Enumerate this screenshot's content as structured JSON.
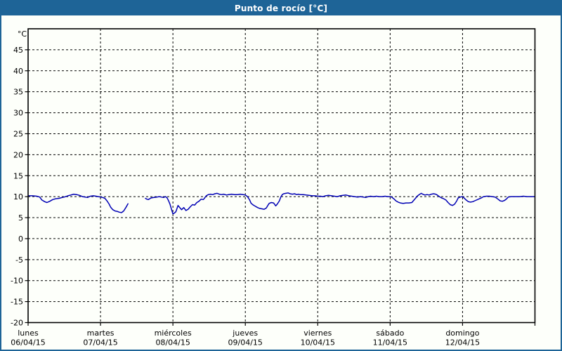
{
  "window": {
    "title": "Punto de rocío [°C]"
  },
  "colors": {
    "titlebar_bg": "#1e6497",
    "border": "#1e6497",
    "title_text": "#ffffff",
    "background": "#fdfffa",
    "line": "#0000b4",
    "grid": "#000000",
    "label_text": "#000000"
  },
  "chart_data": {
    "type": "line",
    "title": "Punto de rocío [°C]",
    "ylabel": "°C",
    "ylim": [
      -20,
      50
    ],
    "ytick_step": 5,
    "ytick_values": [
      45,
      40,
      35,
      30,
      25,
      20,
      15,
      10,
      5,
      0,
      -5,
      -10,
      -15,
      -20
    ],
    "grid": "dashed",
    "legend": "none",
    "x_days": [
      {
        "name": "lunes",
        "date": "06/04/15"
      },
      {
        "name": "martes",
        "date": "07/04/15"
      },
      {
        "name": "miércoles",
        "date": "08/04/15"
      },
      {
        "name": "jueves",
        "date": "09/04/15"
      },
      {
        "name": "viernes",
        "date": "10/04/15"
      },
      {
        "name": "sábado",
        "date": "11/04/15"
      },
      {
        "name": "domingo",
        "date": "12/04/15"
      }
    ],
    "x_unit": "days (0 = lunes 00:00)",
    "series": [
      {
        "name": "Punto de rocío",
        "color": "#0000b4",
        "segments": [
          [
            [
              0.0,
              10.2
            ],
            [
              0.06,
              10.2
            ],
            [
              0.12,
              10.1
            ],
            [
              0.16,
              9.9
            ],
            [
              0.19,
              9.2
            ],
            [
              0.23,
              8.8
            ],
            [
              0.26,
              8.6
            ],
            [
              0.3,
              8.9
            ],
            [
              0.34,
              9.3
            ],
            [
              0.38,
              9.5
            ],
            [
              0.43,
              9.6
            ],
            [
              0.47,
              9.8
            ],
            [
              0.5,
              9.9
            ],
            [
              0.55,
              10.2
            ],
            [
              0.59,
              10.4
            ],
            [
              0.63,
              10.6
            ],
            [
              0.67,
              10.5
            ],
            [
              0.71,
              10.3
            ],
            [
              0.75,
              10.0
            ],
            [
              0.79,
              9.9
            ],
            [
              0.82,
              9.8
            ],
            [
              0.86,
              10.1
            ],
            [
              0.9,
              10.2
            ],
            [
              0.94,
              10.1
            ],
            [
              0.97,
              10.0
            ],
            [
              1.0,
              9.9
            ],
            [
              1.03,
              9.8
            ],
            [
              1.06,
              9.6
            ],
            [
              1.09,
              9.0
            ],
            [
              1.12,
              8.2
            ],
            [
              1.14,
              7.5
            ],
            [
              1.17,
              6.9
            ],
            [
              1.2,
              6.6
            ],
            [
              1.23,
              6.5
            ],
            [
              1.26,
              6.3
            ],
            [
              1.29,
              6.2
            ],
            [
              1.32,
              6.6
            ],
            [
              1.35,
              7.4
            ],
            [
              1.38,
              8.3
            ]
          ],
          [
            [
              1.62,
              9.6
            ],
            [
              1.64,
              9.4
            ],
            [
              1.66,
              9.3
            ],
            [
              1.7,
              9.7
            ],
            [
              1.74,
              9.8
            ],
            [
              1.78,
              9.9
            ],
            [
              1.81,
              10.0
            ],
            [
              1.84,
              9.9
            ],
            [
              1.87,
              9.8
            ],
            [
              1.9,
              10.0
            ],
            [
              1.92,
              9.7
            ],
            [
              1.94,
              9.0
            ],
            [
              1.96,
              8.2
            ],
            [
              1.98,
              7.0
            ],
            [
              2.0,
              5.9
            ],
            [
              2.02,
              6.1
            ],
            [
              2.04,
              6.4
            ],
            [
              2.07,
              7.9
            ],
            [
              2.1,
              7.3
            ],
            [
              2.12,
              6.9
            ],
            [
              2.15,
              7.4
            ],
            [
              2.18,
              6.7
            ],
            [
              2.21,
              7.0
            ],
            [
              2.24,
              7.6
            ],
            [
              2.27,
              8.1
            ],
            [
              2.3,
              8.0
            ],
            [
              2.33,
              8.6
            ],
            [
              2.36,
              8.9
            ],
            [
              2.39,
              9.4
            ],
            [
              2.42,
              9.3
            ],
            [
              2.43,
              9.5
            ],
            [
              2.46,
              10.2
            ],
            [
              2.49,
              10.5
            ],
            [
              2.52,
              10.6
            ],
            [
              2.55,
              10.5
            ],
            [
              2.58,
              10.7
            ],
            [
              2.61,
              10.8
            ],
            [
              2.64,
              10.6
            ],
            [
              2.67,
              10.5
            ],
            [
              2.7,
              10.6
            ],
            [
              2.74,
              10.4
            ],
            [
              2.77,
              10.5
            ],
            [
              2.81,
              10.6
            ],
            [
              2.85,
              10.5
            ],
            [
              2.89,
              10.5
            ],
            [
              2.93,
              10.6
            ],
            [
              2.97,
              10.5
            ],
            [
              3.0,
              10.4
            ],
            [
              3.03,
              10.0
            ],
            [
              3.06,
              9.2
            ],
            [
              3.08,
              8.4
            ],
            [
              3.11,
              8.0
            ],
            [
              3.14,
              7.7
            ],
            [
              3.17,
              7.4
            ],
            [
              3.2,
              7.2
            ],
            [
              3.23,
              7.1
            ],
            [
              3.26,
              7.0
            ],
            [
              3.29,
              7.3
            ],
            [
              3.31,
              7.9
            ],
            [
              3.33,
              8.4
            ],
            [
              3.36,
              8.6
            ],
            [
              3.39,
              8.5
            ],
            [
              3.4,
              8.3
            ],
            [
              3.42,
              7.8
            ],
            [
              3.44,
              8.2
            ],
            [
              3.47,
              9.0
            ],
            [
              3.49,
              9.9
            ],
            [
              3.51,
              10.5
            ],
            [
              3.53,
              10.7
            ],
            [
              3.56,
              10.8
            ],
            [
              3.59,
              10.9
            ],
            [
              3.62,
              10.7
            ],
            [
              3.65,
              10.6
            ],
            [
              3.68,
              10.7
            ],
            [
              3.71,
              10.5
            ],
            [
              3.73,
              10.6
            ],
            [
              3.76,
              10.5
            ],
            [
              3.8,
              10.5
            ],
            [
              3.84,
              10.4
            ],
            [
              3.88,
              10.3
            ],
            [
              3.92,
              10.2
            ],
            [
              3.96,
              10.2
            ],
            [
              4.0,
              10.1
            ],
            [
              4.04,
              10.1
            ],
            [
              4.07,
              10.0
            ],
            [
              4.11,
              10.2
            ],
            [
              4.15,
              10.3
            ],
            [
              4.19,
              10.2
            ],
            [
              4.23,
              10.1
            ],
            [
              4.27,
              10.0
            ],
            [
              4.31,
              10.2
            ],
            [
              4.35,
              10.3
            ],
            [
              4.39,
              10.4
            ],
            [
              4.43,
              10.2
            ],
            [
              4.47,
              10.1
            ],
            [
              4.51,
              10.0
            ],
            [
              4.55,
              9.9
            ],
            [
              4.59,
              10.0
            ],
            [
              4.63,
              9.9
            ],
            [
              4.66,
              9.8
            ],
            [
              4.7,
              10.0
            ],
            [
              4.73,
              10.1
            ],
            [
              4.77,
              10.0
            ],
            [
              4.81,
              10.1
            ],
            [
              4.85,
              10.0
            ],
            [
              4.89,
              10.0
            ],
            [
              4.93,
              10.1
            ],
            [
              4.97,
              10.0
            ],
            [
              5.0,
              10.0
            ],
            [
              5.02,
              9.9
            ],
            [
              5.05,
              9.5
            ],
            [
              5.08,
              9.0
            ],
            [
              5.11,
              8.7
            ],
            [
              5.14,
              8.5
            ],
            [
              5.18,
              8.4
            ],
            [
              5.22,
              8.5
            ],
            [
              5.26,
              8.5
            ],
            [
              5.3,
              8.6
            ],
            [
              5.32,
              9.0
            ],
            [
              5.35,
              9.6
            ],
            [
              5.38,
              10.2
            ],
            [
              5.41,
              10.6
            ],
            [
              5.43,
              10.8
            ],
            [
              5.45,
              10.6
            ],
            [
              5.48,
              10.4
            ],
            [
              5.51,
              10.5
            ],
            [
              5.54,
              10.4
            ],
            [
              5.57,
              10.6
            ],
            [
              5.6,
              10.7
            ],
            [
              5.63,
              10.6
            ],
            [
              5.65,
              10.4
            ],
            [
              5.68,
              10.0
            ],
            [
              5.71,
              9.7
            ],
            [
              5.74,
              9.5
            ],
            [
              5.77,
              9.2
            ],
            [
              5.8,
              8.6
            ],
            [
              5.83,
              8.1
            ],
            [
              5.86,
              7.9
            ],
            [
              5.89,
              8.2
            ],
            [
              5.92,
              9.0
            ],
            [
              5.94,
              9.7
            ],
            [
              5.97,
              9.9
            ],
            [
              6.0,
              10.0
            ],
            [
              6.02,
              9.7
            ],
            [
              6.05,
              9.2
            ],
            [
              6.08,
              8.8
            ],
            [
              6.11,
              8.7
            ],
            [
              6.14,
              8.8
            ],
            [
              6.18,
              9.1
            ],
            [
              6.22,
              9.4
            ],
            [
              6.26,
              9.7
            ],
            [
              6.29,
              10.0
            ],
            [
              6.33,
              10.1
            ],
            [
              6.37,
              10.1
            ],
            [
              6.41,
              10.0
            ],
            [
              6.45,
              9.9
            ],
            [
              6.49,
              9.4
            ],
            [
              6.52,
              9.0
            ],
            [
              6.55,
              8.9
            ],
            [
              6.58,
              9.1
            ],
            [
              6.61,
              9.5
            ],
            [
              6.63,
              9.9
            ],
            [
              6.67,
              10.0
            ],
            [
              6.71,
              10.0
            ],
            [
              6.75,
              10.0
            ],
            [
              6.79,
              10.0
            ],
            [
              6.84,
              10.1
            ],
            [
              6.89,
              10.0
            ],
            [
              6.93,
              10.0
            ],
            [
              7.0,
              10.0
            ]
          ]
        ]
      }
    ]
  }
}
